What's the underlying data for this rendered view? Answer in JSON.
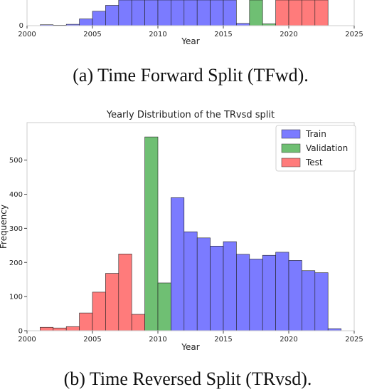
{
  "captions": {
    "top": "(a) Time Forward Split (TFwd).",
    "bottom": "(b) Time Reversed Split (TRvsd)."
  },
  "colors": {
    "train": "#7b7bff",
    "validation": "#6fbf73",
    "test": "#ff7b7b"
  },
  "chart_data": [
    {
      "type": "bar",
      "title": "",
      "xlabel": "Year",
      "ylabel": "",
      "xlim": [
        2000,
        2025
      ],
      "x_ticks": [
        "2000",
        "2005",
        "2010",
        "2015",
        "2020",
        "2025"
      ],
      "y_tick_labels": [
        "0"
      ],
      "ylim": [
        0,
        60
      ],
      "bins": [
        {
          "year": 2001,
          "value": 2,
          "split": "train"
        },
        {
          "year": 2002,
          "value": 1,
          "split": "train"
        },
        {
          "year": 2003,
          "value": 3,
          "split": "train"
        },
        {
          "year": 2004,
          "value": 15,
          "split": "train"
        },
        {
          "year": 2005,
          "value": 32,
          "split": "train"
        },
        {
          "year": 2006,
          "value": 45,
          "split": "train"
        },
        {
          "year": 2007,
          "value": 60,
          "split": "train"
        },
        {
          "year": 2008,
          "value": 60,
          "split": "train"
        },
        {
          "year": 2009,
          "value": 60,
          "split": "train"
        },
        {
          "year": 2010,
          "value": 60,
          "split": "train"
        },
        {
          "year": 2011,
          "value": 60,
          "split": "train"
        },
        {
          "year": 2012,
          "value": 60,
          "split": "train"
        },
        {
          "year": 2013,
          "value": 60,
          "split": "train"
        },
        {
          "year": 2014,
          "value": 60,
          "split": "train"
        },
        {
          "year": 2015,
          "value": 60,
          "split": "train"
        },
        {
          "year": 2016,
          "value": 5,
          "split": "train"
        },
        {
          "year": 2017,
          "value": 60,
          "split": "validation"
        },
        {
          "year": 2018,
          "value": 4,
          "split": "validation"
        },
        {
          "year": 2019,
          "value": 60,
          "split": "test"
        },
        {
          "year": 2020,
          "value": 60,
          "split": "test"
        },
        {
          "year": 2021,
          "value": 60,
          "split": "test"
        },
        {
          "year": 2022,
          "value": 60,
          "split": "test"
        }
      ]
    },
    {
      "type": "bar",
      "title": "Yearly Distribution of the TRvsd split",
      "xlabel": "Year",
      "ylabel": "Frequency",
      "xlim": [
        2000,
        2025
      ],
      "ylim": [
        0,
        610
      ],
      "x_ticks": [
        "2000",
        "2005",
        "2010",
        "2015",
        "2020",
        "2025"
      ],
      "y_ticks": [
        "0",
        "100",
        "200",
        "300",
        "400",
        "500"
      ],
      "legend": {
        "position": "top-right",
        "entries": [
          {
            "label": "Train",
            "split": "train"
          },
          {
            "label": "Validation",
            "split": "validation"
          },
          {
            "label": "Test",
            "split": "test"
          }
        ]
      },
      "bins": [
        {
          "year": 2001,
          "value": 10,
          "split": "test"
        },
        {
          "year": 2002,
          "value": 8,
          "split": "test"
        },
        {
          "year": 2003,
          "value": 12,
          "split": "test"
        },
        {
          "year": 2004,
          "value": 52,
          "split": "test"
        },
        {
          "year": 2005,
          "value": 113,
          "split": "test"
        },
        {
          "year": 2006,
          "value": 168,
          "split": "test"
        },
        {
          "year": 2007,
          "value": 225,
          "split": "test"
        },
        {
          "year": 2008,
          "value": 48,
          "split": "test"
        },
        {
          "year": 2009,
          "value": 568,
          "split": "validation"
        },
        {
          "year": 2010,
          "value": 140,
          "split": "validation"
        },
        {
          "year": 2011,
          "value": 390,
          "split": "train"
        },
        {
          "year": 2012,
          "value": 290,
          "split": "train"
        },
        {
          "year": 2013,
          "value": 272,
          "split": "train"
        },
        {
          "year": 2014,
          "value": 248,
          "split": "train"
        },
        {
          "year": 2015,
          "value": 261,
          "split": "train"
        },
        {
          "year": 2016,
          "value": 224,
          "split": "train"
        },
        {
          "year": 2017,
          "value": 210,
          "split": "train"
        },
        {
          "year": 2018,
          "value": 221,
          "split": "train"
        },
        {
          "year": 2019,
          "value": 230,
          "split": "train"
        },
        {
          "year": 2020,
          "value": 206,
          "split": "train"
        },
        {
          "year": 2021,
          "value": 176,
          "split": "train"
        },
        {
          "year": 2022,
          "value": 170,
          "split": "train"
        },
        {
          "year": 2023,
          "value": 6,
          "split": "train"
        }
      ]
    }
  ]
}
